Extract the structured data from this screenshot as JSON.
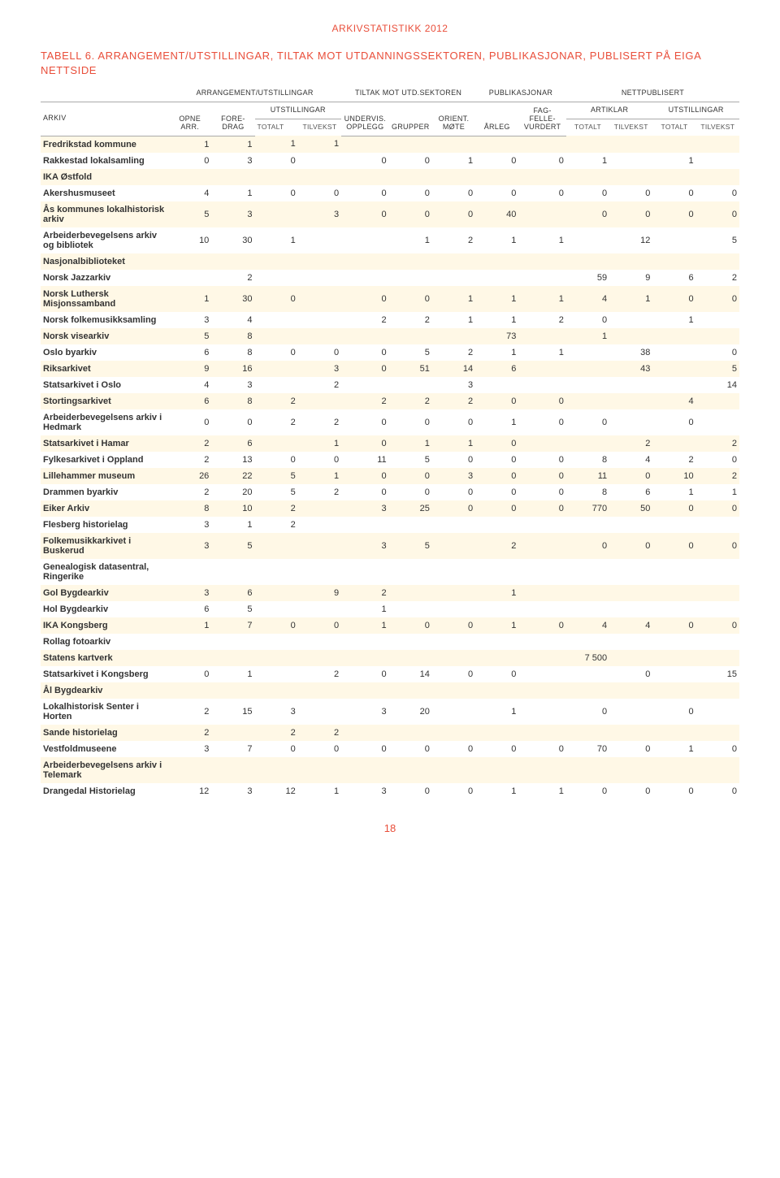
{
  "doc_header": "ARKIVSTATISTIKK 2012",
  "table_title": "TABELL 6. ARRANGEMENT/UTSTILLINGAR, TILTAK MOT UTDANNINGSSEKTOREN, PUBLIKASJONAR, PUBLISERT PÅ EIGA NETTSIDE",
  "groups": {
    "g1": "ARRANGEMENT/UTSTILLINGAR",
    "g2": "TILTAK MOT UTD.SEKTOREN",
    "g3": "PUBLIKASJONAR",
    "g4": "NETTPUBLISERT"
  },
  "subgroups": {
    "arkiv": "ARKIV",
    "utstillingar": "UTSTILLINGAR",
    "artiklar": "ARTIKLAR",
    "utstillingar2": "UTSTILLINGAR"
  },
  "cols": {
    "c1": "OPNE ARR.",
    "c2": "FORE-DRAG",
    "c3": "TOTALT",
    "c4": "TILVEKST",
    "c5": "UNDERVIS. OPPLEGG",
    "c6": "GRUPPER",
    "c7": "ORIENT. MØTE",
    "c8": "ÅRLEG",
    "c9": "FAG-FELLE-VURDERT",
    "c10": "TOTALT",
    "c11": "TILVEKST",
    "c12": "TOTALT",
    "c13": "TILVEKST"
  },
  "rows": [
    {
      "n": "Fredrikstad kommune",
      "v": [
        "1",
        "1",
        "1",
        "1",
        "",
        "",
        "",
        "",
        "",
        "",
        "",
        "",
        ""
      ]
    },
    {
      "n": "Rakkestad lokalsamling",
      "v": [
        "0",
        "3",
        "0",
        "",
        "0",
        "0",
        "1",
        "0",
        "0",
        "1",
        "",
        "1",
        ""
      ]
    },
    {
      "n": "IKA Østfold",
      "v": [
        "",
        "",
        "",
        "",
        "",
        "",
        "",
        "",
        "",
        "",
        "",
        "",
        ""
      ]
    },
    {
      "n": "Akershusmuseet",
      "v": [
        "4",
        "1",
        "0",
        "0",
        "0",
        "0",
        "0",
        "0",
        "0",
        "0",
        "0",
        "0",
        "0"
      ]
    },
    {
      "n": "Ås kommunes lokalhistorisk arkiv",
      "v": [
        "5",
        "3",
        "",
        "3",
        "0",
        "0",
        "0",
        "40",
        "",
        "0",
        "0",
        "0",
        "0"
      ]
    },
    {
      "n": "Arbeiderbevegelsens arkiv og bibliotek",
      "v": [
        "10",
        "30",
        "1",
        "",
        "",
        "1",
        "2",
        "1",
        "1",
        "",
        "12",
        "",
        "5"
      ]
    },
    {
      "n": "Nasjonalbiblioteket",
      "v": [
        "",
        "",
        "",
        "",
        "",
        "",
        "",
        "",
        "",
        "",
        "",
        "",
        ""
      ]
    },
    {
      "n": "Norsk Jazzarkiv",
      "v": [
        "",
        "2",
        "",
        "",
        "",
        "",
        "",
        "",
        "",
        "59",
        "9",
        "6",
        "2"
      ]
    },
    {
      "n": "Norsk Luthersk Misjonssamband",
      "v": [
        "1",
        "30",
        "0",
        "",
        "0",
        "0",
        "1",
        "1",
        "1",
        "4",
        "1",
        "0",
        "0"
      ]
    },
    {
      "n": "Norsk folkemusikksamling",
      "v": [
        "3",
        "4",
        "",
        "",
        "2",
        "2",
        "1",
        "1",
        "2",
        "0",
        "",
        "1",
        ""
      ]
    },
    {
      "n": "Norsk visearkiv",
      "v": [
        "5",
        "8",
        "",
        "",
        "",
        "",
        "",
        "73",
        "",
        "1",
        "",
        "",
        ""
      ]
    },
    {
      "n": "Oslo byarkiv",
      "v": [
        "6",
        "8",
        "0",
        "0",
        "0",
        "5",
        "2",
        "1",
        "1",
        "",
        "38",
        "",
        "0"
      ]
    },
    {
      "n": "Riksarkivet",
      "v": [
        "9",
        "16",
        "",
        "3",
        "0",
        "51",
        "14",
        "6",
        "",
        "",
        "43",
        "",
        "5"
      ]
    },
    {
      "n": "Statsarkivet i Oslo",
      "v": [
        "4",
        "3",
        "",
        "2",
        "",
        "",
        "3",
        "",
        "",
        "",
        "",
        "",
        "14"
      ]
    },
    {
      "n": "Stortingsarkivet",
      "v": [
        "6",
        "8",
        "2",
        "",
        "2",
        "2",
        "2",
        "0",
        "0",
        "",
        "",
        "4",
        ""
      ]
    },
    {
      "n": "Arbeiderbevegelsens arkiv i Hedmark",
      "v": [
        "0",
        "0",
        "2",
        "2",
        "0",
        "0",
        "0",
        "1",
        "0",
        "0",
        "",
        "0",
        ""
      ]
    },
    {
      "n": "Statsarkivet i Hamar",
      "v": [
        "2",
        "6",
        "",
        "1",
        "0",
        "1",
        "1",
        "0",
        "",
        "",
        "2",
        "",
        "2"
      ]
    },
    {
      "n": "Fylkesarkivet i Oppland",
      "v": [
        "2",
        "13",
        "0",
        "0",
        "11",
        "5",
        "0",
        "0",
        "0",
        "8",
        "4",
        "2",
        "0"
      ]
    },
    {
      "n": "Lillehammer museum",
      "v": [
        "26",
        "22",
        "5",
        "1",
        "0",
        "0",
        "3",
        "0",
        "0",
        "11",
        "0",
        "10",
        "2"
      ]
    },
    {
      "n": "Drammen byarkiv",
      "v": [
        "2",
        "20",
        "5",
        "2",
        "0",
        "0",
        "0",
        "0",
        "0",
        "8",
        "6",
        "1",
        "1"
      ]
    },
    {
      "n": "Eiker Arkiv",
      "v": [
        "8",
        "10",
        "2",
        "",
        "3",
        "25",
        "0",
        "0",
        "0",
        "770",
        "50",
        "0",
        "0"
      ]
    },
    {
      "n": "Flesberg historielag",
      "v": [
        "3",
        "1",
        "2",
        "",
        "",
        "",
        "",
        "",
        "",
        "",
        "",
        "",
        ""
      ]
    },
    {
      "n": "Folkemusikkarkivet i Buskerud",
      "v": [
        "3",
        "5",
        "",
        "",
        "3",
        "5",
        "",
        "2",
        "",
        "0",
        "0",
        "0",
        "0"
      ]
    },
    {
      "n": "Genealogisk datasentral, Ringerike",
      "v": [
        "",
        "",
        "",
        "",
        "",
        "",
        "",
        "",
        "",
        "",
        "",
        "",
        ""
      ]
    },
    {
      "n": "Gol Bygdearkiv",
      "v": [
        "3",
        "6",
        "",
        "9",
        "2",
        "",
        "",
        "1",
        "",
        "",
        "",
        "",
        ""
      ]
    },
    {
      "n": "Hol Bygdearkiv",
      "v": [
        "6",
        "5",
        "",
        "",
        "1",
        "",
        "",
        "",
        "",
        "",
        "",
        "",
        ""
      ]
    },
    {
      "n": "IKA Kongsberg",
      "v": [
        "1",
        "7",
        "0",
        "0",
        "1",
        "0",
        "0",
        "1",
        "0",
        "4",
        "4",
        "0",
        "0"
      ]
    },
    {
      "n": "Rollag fotoarkiv",
      "v": [
        "",
        "",
        "",
        "",
        "",
        "",
        "",
        "",
        "",
        "",
        "",
        "",
        ""
      ]
    },
    {
      "n": "Statens kartverk",
      "v": [
        "",
        "",
        "",
        "",
        "",
        "",
        "",
        "",
        "",
        "7 500",
        "",
        "",
        ""
      ]
    },
    {
      "n": "Statsarkivet i Kongsberg",
      "v": [
        "0",
        "1",
        "",
        "2",
        "0",
        "14",
        "0",
        "0",
        "",
        "",
        "0",
        "",
        "15"
      ]
    },
    {
      "n": "Ål Bygdearkiv",
      "v": [
        "",
        "",
        "",
        "",
        "",
        "",
        "",
        "",
        "",
        "",
        "",
        "",
        ""
      ]
    },
    {
      "n": "Lokalhistorisk Senter i Horten",
      "v": [
        "2",
        "15",
        "3",
        "",
        "3",
        "20",
        "",
        "1",
        "",
        "0",
        "",
        "0",
        ""
      ]
    },
    {
      "n": "Sande historielag",
      "v": [
        "2",
        "",
        "2",
        "2",
        "",
        "",
        "",
        "",
        "",
        "",
        "",
        "",
        ""
      ]
    },
    {
      "n": "Vestfoldmuseene",
      "v": [
        "3",
        "7",
        "0",
        "0",
        "0",
        "0",
        "0",
        "0",
        "0",
        "70",
        "0",
        "1",
        "0"
      ]
    },
    {
      "n": "Arbeiderbevegelsens arkiv i Telemark",
      "v": [
        "",
        "",
        "",
        "",
        "",
        "",
        "",
        "",
        "",
        "",
        "",
        "",
        ""
      ]
    },
    {
      "n": "Drangedal Historielag",
      "v": [
        "12",
        "3",
        "12",
        "1",
        "3",
        "0",
        "0",
        "1",
        "1",
        "0",
        "0",
        "0",
        "0"
      ]
    }
  ],
  "page_number": "18",
  "colors": {
    "accent": "#e94e3a",
    "odd_row": "#fff8e6",
    "even_row": "#ffffff"
  }
}
